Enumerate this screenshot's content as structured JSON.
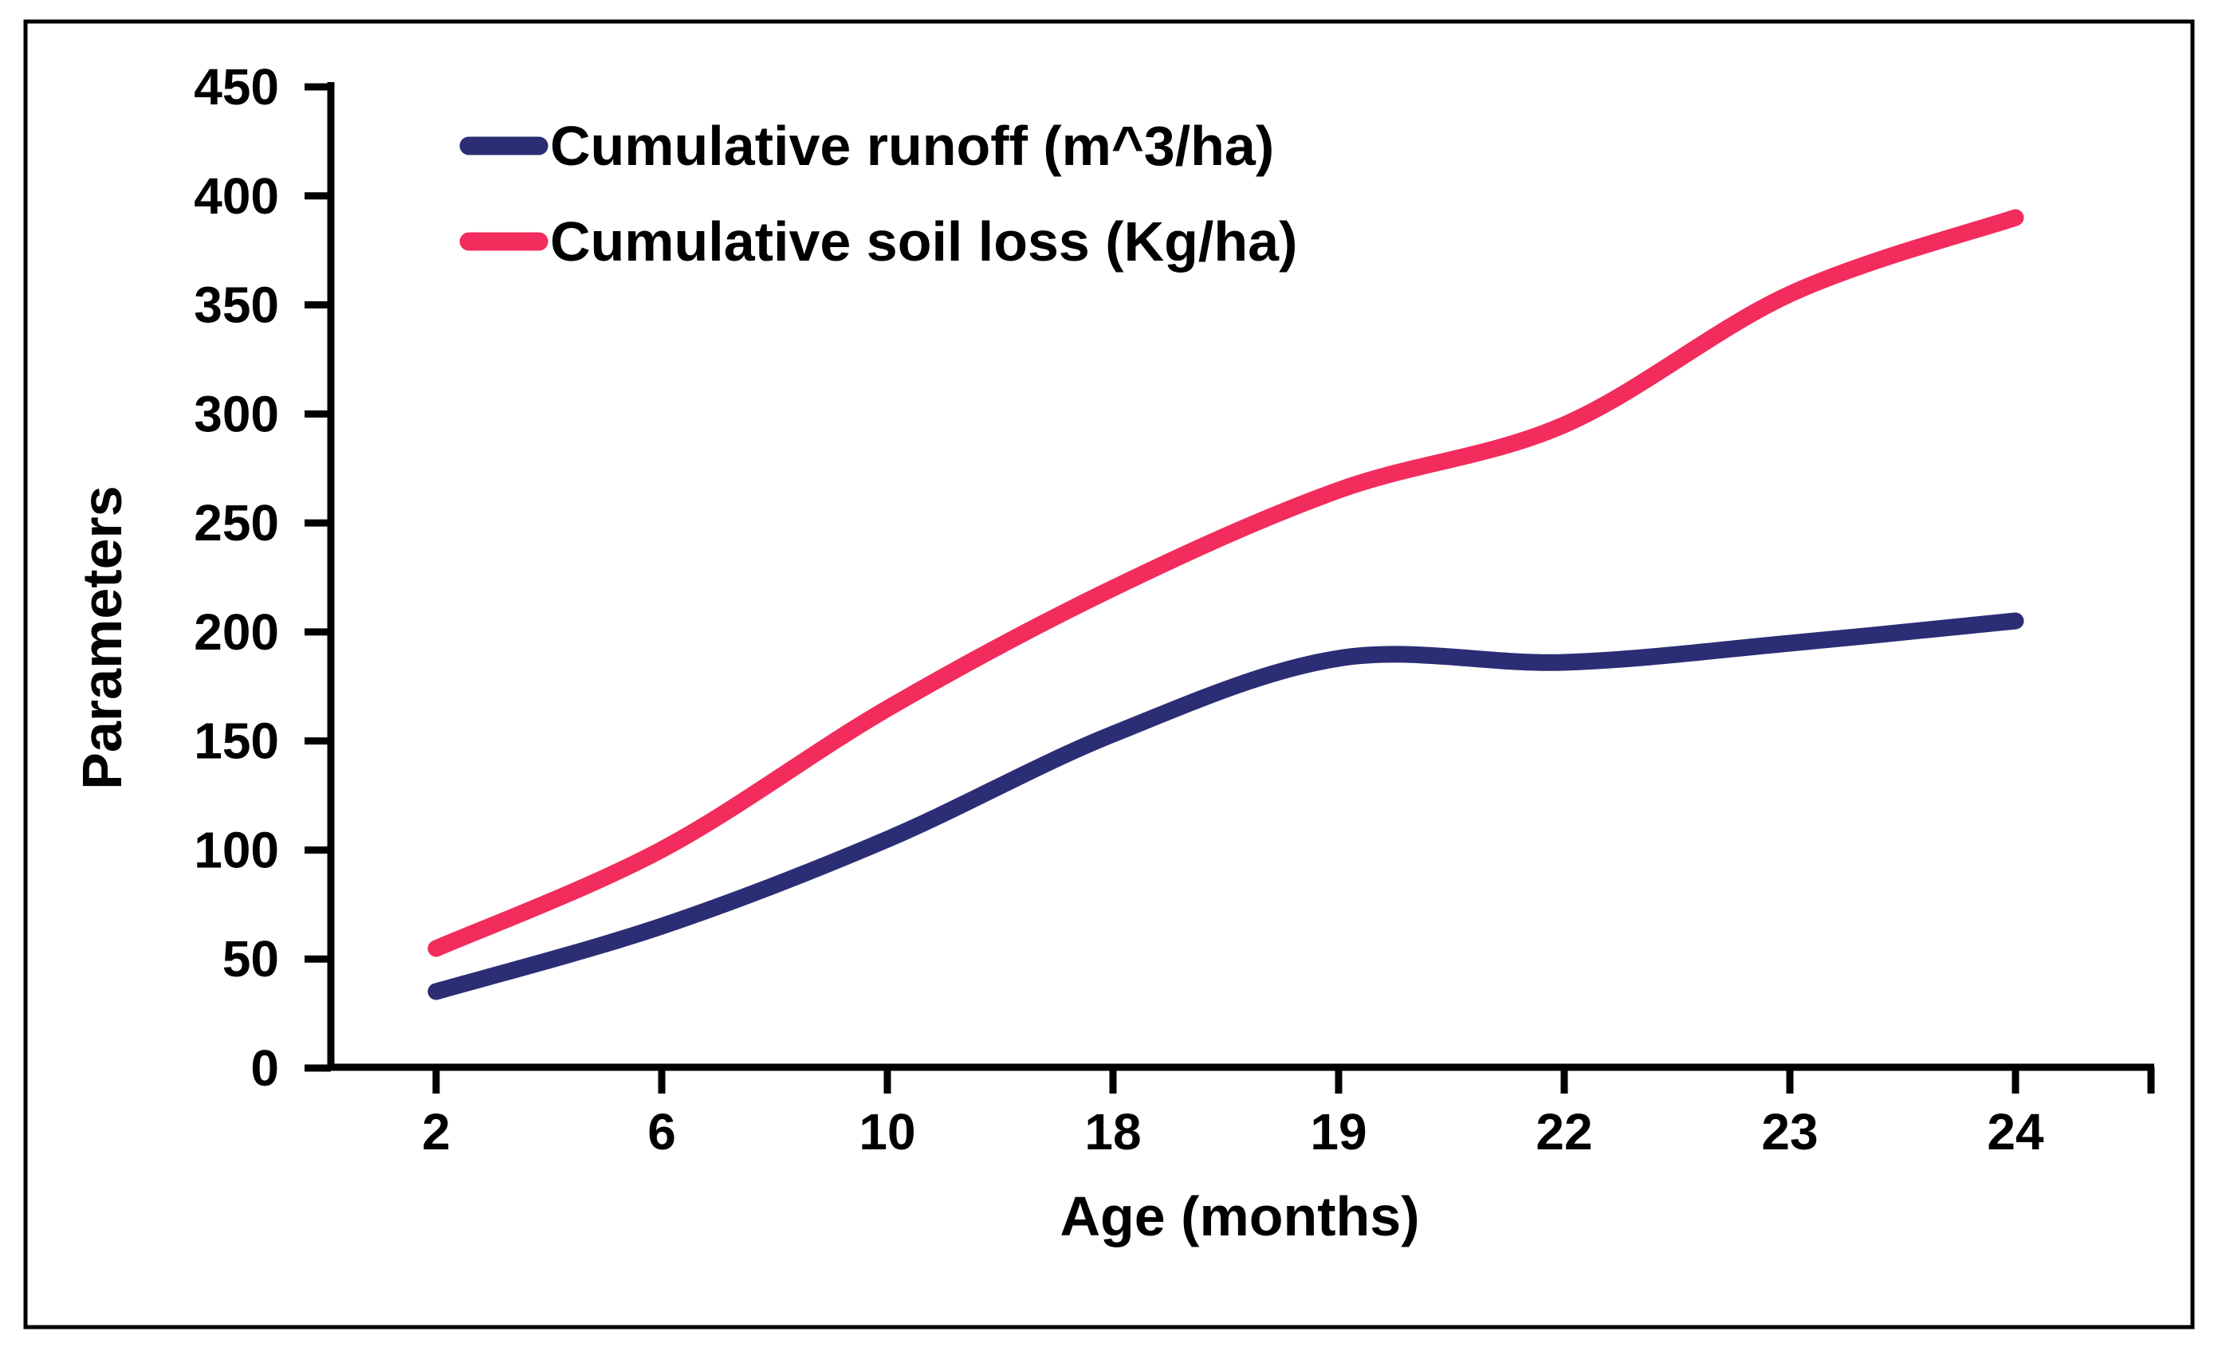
{
  "figure": {
    "background_color": "#ffffff",
    "border_color": "#000000",
    "axis_color": "#000000",
    "text_color": "#000000"
  },
  "chart_data": {
    "type": "line",
    "title": "",
    "xlabel": "Age (months)",
    "ylabel": "Parameters",
    "categories": [
      2,
      6,
      10,
      18,
      19,
      22,
      23,
      24
    ],
    "x_tick_labels": [
      "2",
      "6",
      "10",
      "18",
      "19",
      "22",
      "23",
      "24"
    ],
    "y_ticks": [
      0,
      50,
      100,
      150,
      200,
      250,
      300,
      350,
      400,
      450
    ],
    "ylim": [
      0,
      450
    ],
    "grid": false,
    "line_style": "smooth",
    "legend_position": "top-left-inside",
    "series": [
      {
        "name": "Cumulative runoff (m^3/ha)",
        "color": "#2B2D75",
        "values": [
          35,
          65,
          105,
          153,
          188,
          186,
          195,
          205
        ]
      },
      {
        "name": "Cumulative soil loss (Kg/ha)",
        "color": "#F22C5C",
        "values": [
          55,
          100,
          165,
          220,
          265,
          295,
          355,
          390
        ]
      }
    ]
  }
}
